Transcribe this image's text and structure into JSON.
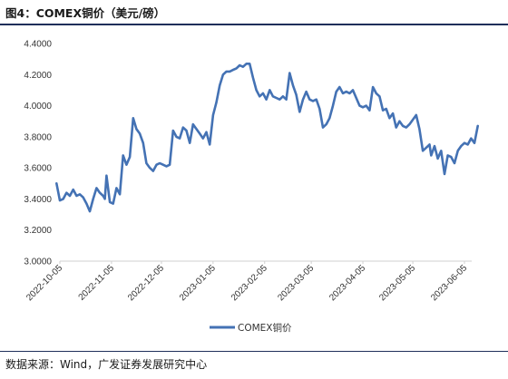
{
  "figure": {
    "title": "图4：COMEX铜价（美元/磅）",
    "source": "数据来源：Wind，广发证券发展研究中心"
  },
  "chart_data": {
    "type": "line",
    "title": "",
    "xlabel": "",
    "ylabel": "",
    "ylim": [
      3.0,
      4.4
    ],
    "yticks": [
      "3.0000",
      "3.2000",
      "3.4000",
      "3.6000",
      "3.8000",
      "4.0000",
      "4.2000",
      "4.4000"
    ],
    "xticks": [
      "2022-10-05",
      "2022-11-05",
      "2022-12-05",
      "2023-01-05",
      "2023-02-05",
      "2023-03-05",
      "2023-04-05",
      "2023-05-05",
      "2023-06-05"
    ],
    "grid": false,
    "legend_position": "bottom",
    "series": [
      {
        "name": "COMEX铜价",
        "color": "#4472b4",
        "points": [
          [
            "2022-10-03",
            3.5
          ],
          [
            "2022-10-05",
            3.39
          ],
          [
            "2022-10-07",
            3.4
          ],
          [
            "2022-10-09",
            3.44
          ],
          [
            "2022-10-11",
            3.42
          ],
          [
            "2022-10-13",
            3.46
          ],
          [
            "2022-10-15",
            3.42
          ],
          [
            "2022-10-17",
            3.43
          ],
          [
            "2022-10-19",
            3.41
          ],
          [
            "2022-10-21",
            3.37
          ],
          [
            "2022-10-23",
            3.32
          ],
          [
            "2022-10-25",
            3.4
          ],
          [
            "2022-10-27",
            3.47
          ],
          [
            "2022-10-29",
            3.44
          ],
          [
            "2022-10-31",
            3.42
          ],
          [
            "2022-11-01",
            3.4
          ],
          [
            "2022-11-02",
            3.55
          ],
          [
            "2022-11-04",
            3.38
          ],
          [
            "2022-11-06",
            3.37
          ],
          [
            "2022-11-08",
            3.47
          ],
          [
            "2022-11-10",
            3.43
          ],
          [
            "2022-11-12",
            3.68
          ],
          [
            "2022-11-14",
            3.62
          ],
          [
            "2022-11-16",
            3.67
          ],
          [
            "2022-11-18",
            3.92
          ],
          [
            "2022-11-20",
            3.85
          ],
          [
            "2022-11-22",
            3.82
          ],
          [
            "2022-11-24",
            3.76
          ],
          [
            "2022-11-26",
            3.63
          ],
          [
            "2022-11-28",
            3.6
          ],
          [
            "2022-11-30",
            3.58
          ],
          [
            "2022-12-02",
            3.62
          ],
          [
            "2022-12-04",
            3.63
          ],
          [
            "2022-12-06",
            3.62
          ],
          [
            "2022-12-08",
            3.61
          ],
          [
            "2022-12-10",
            3.62
          ],
          [
            "2022-12-12",
            3.84
          ],
          [
            "2022-12-14",
            3.8
          ],
          [
            "2022-12-16",
            3.79
          ],
          [
            "2022-12-18",
            3.86
          ],
          [
            "2022-12-20",
            3.84
          ],
          [
            "2022-12-22",
            3.76
          ],
          [
            "2022-12-24",
            3.88
          ],
          [
            "2022-12-26",
            3.85
          ],
          [
            "2022-12-28",
            3.82
          ],
          [
            "2022-12-30",
            3.79
          ],
          [
            "2023-01-01",
            3.83
          ],
          [
            "2023-01-03",
            3.75
          ],
          [
            "2023-01-05",
            3.94
          ],
          [
            "2023-01-07",
            4.02
          ],
          [
            "2023-01-09",
            4.13
          ],
          [
            "2023-01-11",
            4.2
          ],
          [
            "2023-01-13",
            4.22
          ],
          [
            "2023-01-15",
            4.22
          ],
          [
            "2023-01-17",
            4.23
          ],
          [
            "2023-01-19",
            4.24
          ],
          [
            "2023-01-21",
            4.26
          ],
          [
            "2023-01-23",
            4.25
          ],
          [
            "2023-01-25",
            4.27
          ],
          [
            "2023-01-27",
            4.27
          ],
          [
            "2023-01-29",
            4.18
          ],
          [
            "2023-01-31",
            4.1
          ],
          [
            "2023-02-02",
            4.06
          ],
          [
            "2023-02-04",
            4.08
          ],
          [
            "2023-02-06",
            4.04
          ],
          [
            "2023-02-08",
            4.1
          ],
          [
            "2023-02-10",
            4.06
          ],
          [
            "2023-02-12",
            4.05
          ],
          [
            "2023-02-14",
            4.04
          ],
          [
            "2023-02-16",
            4.06
          ],
          [
            "2023-02-18",
            4.04
          ],
          [
            "2023-02-20",
            4.21
          ],
          [
            "2023-02-22",
            4.13
          ],
          [
            "2023-02-24",
            4.07
          ],
          [
            "2023-02-26",
            3.96
          ],
          [
            "2023-02-28",
            4.04
          ],
          [
            "2023-03-02",
            4.09
          ],
          [
            "2023-03-04",
            4.04
          ],
          [
            "2023-03-06",
            4.03
          ],
          [
            "2023-03-08",
            4.04
          ],
          [
            "2023-03-10",
            3.98
          ],
          [
            "2023-03-12",
            3.86
          ],
          [
            "2023-03-14",
            3.88
          ],
          [
            "2023-03-16",
            3.92
          ],
          [
            "2023-03-18",
            4.0
          ],
          [
            "2023-03-20",
            4.09
          ],
          [
            "2023-03-22",
            4.12
          ],
          [
            "2023-03-24",
            4.08
          ],
          [
            "2023-03-26",
            4.09
          ],
          [
            "2023-03-28",
            4.08
          ],
          [
            "2023-03-30",
            4.1
          ],
          [
            "2023-04-01",
            4.05
          ],
          [
            "2023-04-03",
            4.0
          ],
          [
            "2023-04-05",
            3.99
          ],
          [
            "2023-04-07",
            4.0
          ],
          [
            "2023-04-09",
            3.97
          ],
          [
            "2023-04-11",
            4.12
          ],
          [
            "2023-04-13",
            4.08
          ],
          [
            "2023-04-15",
            4.06
          ],
          [
            "2023-04-17",
            3.97
          ],
          [
            "2023-04-19",
            3.98
          ],
          [
            "2023-04-21",
            3.92
          ],
          [
            "2023-04-23",
            3.95
          ],
          [
            "2023-04-25",
            3.86
          ],
          [
            "2023-04-27",
            3.9
          ],
          [
            "2023-04-29",
            3.87
          ],
          [
            "2023-05-01",
            3.86
          ],
          [
            "2023-05-03",
            3.88
          ],
          [
            "2023-05-05",
            3.91
          ],
          [
            "2023-05-07",
            3.94
          ],
          [
            "2023-05-09",
            3.85
          ],
          [
            "2023-05-11",
            3.71
          ],
          [
            "2023-05-13",
            3.73
          ],
          [
            "2023-05-15",
            3.75
          ],
          [
            "2023-05-16",
            3.68
          ],
          [
            "2023-05-18",
            3.74
          ],
          [
            "2023-05-20",
            3.66
          ],
          [
            "2023-05-22",
            3.71
          ],
          [
            "2023-05-24",
            3.56
          ],
          [
            "2023-05-26",
            3.68
          ],
          [
            "2023-05-28",
            3.67
          ],
          [
            "2023-05-30",
            3.63
          ],
          [
            "2023-06-01",
            3.71
          ],
          [
            "2023-06-03",
            3.74
          ],
          [
            "2023-06-05",
            3.76
          ],
          [
            "2023-06-07",
            3.75
          ],
          [
            "2023-06-09",
            3.79
          ],
          [
            "2023-06-11",
            3.76
          ],
          [
            "2023-06-13",
            3.87
          ]
        ]
      }
    ]
  }
}
